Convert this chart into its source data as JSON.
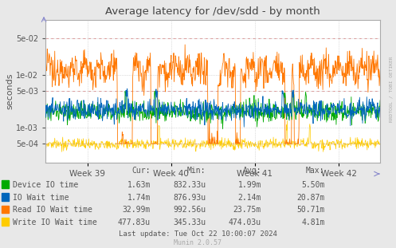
{
  "title": "Average latency for /dev/sdd - by month",
  "ylabel": "seconds",
  "background_color": "#e8e8e8",
  "plot_bg_color": "#ffffff",
  "grid_color": "#c0c0c0",
  "xticklabels": [
    "Week 39",
    "Week 40",
    "Week 41",
    "Week 42"
  ],
  "yticks": [
    0.0005,
    0.001,
    0.005,
    0.01,
    0.05
  ],
  "ytick_labels": [
    "5e-04",
    "1e-03",
    "5e-03",
    "1e-02",
    "5e-02"
  ],
  "red_hlines": [
    0.0005,
    0.005,
    0.05
  ],
  "ylim": [
    0.00022,
    0.11
  ],
  "series": [
    {
      "label": "Device IO time",
      "color": "#00aa00"
    },
    {
      "label": "IO Wait time",
      "color": "#0066bb"
    },
    {
      "label": "Read IO Wait time",
      "color": "#ff7700"
    },
    {
      "label": "Write IO Wait time",
      "color": "#ffcc00"
    }
  ],
  "legend_headers": [
    "Cur:",
    "Min:",
    "Avg:",
    "Max:"
  ],
  "legend_rows": [
    [
      "1.63m",
      "832.33u",
      "1.99m",
      "5.50m"
    ],
    [
      "1.74m",
      "876.93u",
      "2.14m",
      "20.87m"
    ],
    [
      "32.99m",
      "992.56u",
      "23.75m",
      "50.71m"
    ],
    [
      "477.83u",
      "345.33u",
      "474.03u",
      "4.81m"
    ]
  ],
  "footer": "Last update: Tue Oct 22 10:00:07 2024",
  "munin_version": "Munin 2.0.57",
  "rrdtool_label": "RRDTOOL / TOBI OETIKER"
}
